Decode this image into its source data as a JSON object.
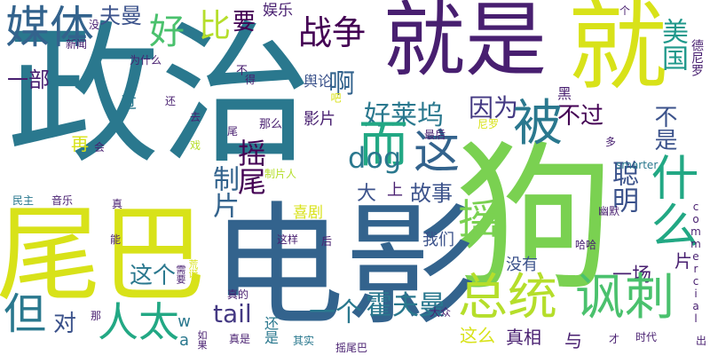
{
  "palette": {
    "yellow": "#d8e219",
    "lime": "#b5de2b",
    "green": "#7ad151",
    "mint": "#4ac16d",
    "teal": "#22a884",
    "cyan": "#1f988b",
    "blue": "#2a788e",
    "steel": "#33638d",
    "indigo": "#3b528b",
    "violet": "#443983",
    "purple": "#481f70",
    "dark": "#440154"
  },
  "words": [
    {
      "text": "政治",
      "color": "#2a788e"
    },
    {
      "text": "就是",
      "color": "#481f70"
    },
    {
      "text": "就",
      "color": "#d8e219"
    },
    {
      "text": "狗",
      "color": "#7ad151"
    },
    {
      "text": "电影",
      "color": "#33638d"
    },
    {
      "text": "尾巴",
      "color": "#d8e219"
    },
    {
      "text": "媒体",
      "color": "#33638d"
    },
    {
      "text": "夫曼",
      "color": "#3b528b"
    },
    {
      "text": "好",
      "color": "#4ac16d"
    },
    {
      "text": "比",
      "color": "#b5de2b"
    },
    {
      "text": "要",
      "color": "#440154"
    },
    {
      "text": "娱乐",
      "color": "#481f70"
    },
    {
      "text": "战争",
      "color": "#440154"
    },
    {
      "text": "美国",
      "color": "#1f988b"
    },
    {
      "text": "一部",
      "color": "#481f70"
    },
    {
      "text": "啊",
      "color": "#33638d"
    },
    {
      "text": "舆论",
      "color": "#3b528b"
    },
    {
      "text": "好莱坞",
      "color": "#2a788e"
    },
    {
      "text": "因为",
      "color": "#443983"
    },
    {
      "text": "而",
      "color": "#22a884"
    },
    {
      "text": "这",
      "color": "#33638d"
    },
    {
      "text": "不过",
      "color": "#440154"
    },
    {
      "text": "被",
      "color": "#2a788e"
    },
    {
      "text": "不是",
      "color": "#3b528b"
    },
    {
      "text": "德尼罗",
      "color": "#481f70"
    },
    {
      "text": "什么",
      "color": "#22a884"
    },
    {
      "text": "摇尾",
      "color": "#440154"
    },
    {
      "text": "dog",
      "color": "#2a788e"
    },
    {
      "text": "聪明",
      "color": "#3b528b"
    },
    {
      "text": "故事",
      "color": "#3b528b"
    },
    {
      "text": "制片",
      "color": "#33638d"
    },
    {
      "text": "喜剧",
      "color": "#d8e219"
    },
    {
      "text": "大",
      "color": "#3b528b"
    },
    {
      "text": "上",
      "color": "#481f70"
    },
    {
      "text": "摇",
      "color": "#7ad151"
    },
    {
      "text": "这个",
      "color": "#2a788e"
    },
    {
      "text": "我们",
      "color": "#3b528b"
    },
    {
      "text": "一场",
      "color": "#481f70"
    },
    {
      "text": "片",
      "color": "#481f70"
    },
    {
      "text": "没有",
      "color": "#3b528b"
    },
    {
      "text": "总统",
      "color": "#b5de2b"
    },
    {
      "text": "讽刺",
      "color": "#4ac16d"
    },
    {
      "text": "但",
      "color": "#2a788e"
    },
    {
      "text": "对",
      "color": "#3b528b"
    },
    {
      "text": "人太",
      "color": "#22a884"
    },
    {
      "text": "tail",
      "color": "#443983"
    },
    {
      "text": "wag",
      "color": "#2a788e"
    },
    {
      "text": "一个",
      "color": "#2a788e"
    },
    {
      "text": "霍夫曼",
      "color": "#2a788e"
    },
    {
      "text": "这么",
      "color": "#d8e219"
    },
    {
      "text": "真相",
      "color": "#481f70"
    },
    {
      "text": "与",
      "color": "#481f70"
    },
    {
      "text": "影片",
      "color": "#481f70"
    },
    {
      "text": "过",
      "color": "#2a788e"
    },
    {
      "text": "再",
      "color": "#d8e219"
    },
    {
      "text": "黑",
      "color": "#481f70"
    },
    {
      "text": "还",
      "color": "#481f70"
    },
    {
      "text": "那么",
      "color": "#481f70"
    },
    {
      "text": "最后",
      "color": "#481f70"
    },
    {
      "text": "多",
      "color": "#481f70"
    },
    {
      "text": "个",
      "color": "#481f70"
    },
    {
      "text": "真是",
      "color": "#481f70"
    },
    {
      "text": "还是",
      "color": "#2a788e"
    },
    {
      "text": "哈哈",
      "color": "#481f70"
    },
    {
      "text": "时代",
      "color": "#481f70"
    },
    {
      "text": "commercial",
      "color": "#481f70"
    },
    {
      "text": "smarter",
      "color": "#2a788e"
    },
    {
      "text": "新闻",
      "color": "#481f70"
    },
    {
      "text": "为什么",
      "color": "#481f70"
    },
    {
      "text": "得",
      "color": "#481f70"
    },
    {
      "text": "没",
      "color": "#481f70"
    },
    {
      "text": "個",
      "color": "#481f70"
    },
    {
      "text": "民主",
      "color": "#2a788e"
    },
    {
      "text": "音乐",
      "color": "#481f70"
    },
    {
      "text": "真",
      "color": "#481f70"
    },
    {
      "text": "能",
      "color": "#481f70"
    },
    {
      "text": "会",
      "color": "#481f70"
    },
    {
      "text": "这样",
      "color": "#481f70"
    },
    {
      "text": "后",
      "color": "#481f70"
    },
    {
      "text": "幽默",
      "color": "#481f70"
    },
    {
      "text": "又",
      "color": "#d8e219"
    },
    {
      "text": "真的",
      "color": "#481f70"
    },
    {
      "text": "其实",
      "color": "#2a788e"
    },
    {
      "text": "大众",
      "color": "#481f70"
    },
    {
      "text": "如果",
      "color": "#481f70"
    },
    {
      "text": "才",
      "color": "#481f70"
    },
    {
      "text": "出",
      "color": "#481f70"
    },
    {
      "text": "摇尾巴",
      "color": "#481f70"
    },
    {
      "text": "去",
      "color": "#481f70"
    },
    {
      "text": "尾",
      "color": "#481f70"
    },
    {
      "text": "戏",
      "color": "#b5de2b"
    },
    {
      "text": "尼罗",
      "color": "#d8e219"
    },
    {
      "text": "不",
      "color": "#481f70"
    },
    {
      "text": "吧",
      "color": "#d8e219"
    },
    {
      "text": "那",
      "color": "#481f70"
    },
    {
      "text": "制片人",
      "color": "#b5de2b"
    },
    {
      "text": "需要",
      "color": "#481f70"
    },
    {
      "text": "里",
      "color": "#481f70"
    },
    {
      "text": "荒诞",
      "color": "#d8e219"
    },
    {
      "text": "看",
      "color": "#481f70"
    }
  ]
}
